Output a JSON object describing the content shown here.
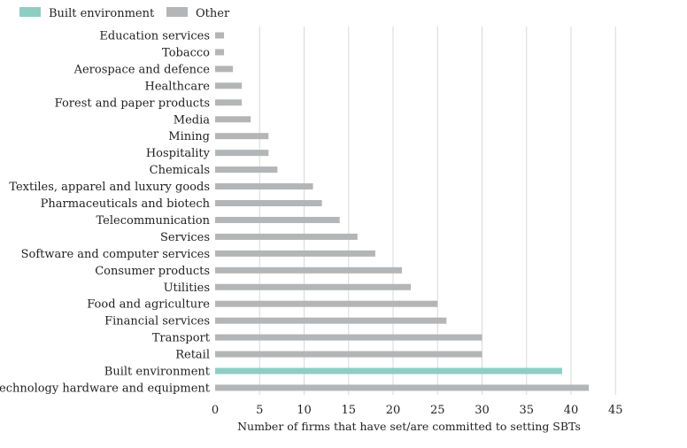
{
  "chart_data": {
    "type": "bar",
    "orientation": "horizontal",
    "categories": [
      "Education services",
      "Tobacco",
      "Aerospace and defence",
      "Healthcare",
      "Forest and paper products",
      "Media",
      "Mining",
      "Hospitality",
      "Chemicals",
      "Textiles, apparel and luxury goods",
      "Pharmaceuticals and biotech",
      "Telecommunication",
      "Services",
      "Software and computer services",
      "Consumer products",
      "Utilities",
      "Food and agriculture",
      "Financial services",
      "Transport",
      "Retail",
      "Built environment",
      "Technology hardware and equipment"
    ],
    "values": [
      1,
      1,
      2,
      3,
      3,
      4,
      6,
      6,
      7,
      11,
      12,
      14,
      16,
      18,
      21,
      22,
      25,
      26,
      30,
      30,
      39,
      42
    ],
    "groups": [
      "Other",
      "Other",
      "Other",
      "Other",
      "Other",
      "Other",
      "Other",
      "Other",
      "Other",
      "Other",
      "Other",
      "Other",
      "Other",
      "Other",
      "Other",
      "Other",
      "Other",
      "Other",
      "Other",
      "Other",
      "Built environment",
      "Other"
    ],
    "legend": [
      {
        "name": "Built environment",
        "color": "#8fcdc3"
      },
      {
        "name": "Other",
        "color": "#b3b5b7"
      }
    ],
    "legend_position": "top-left",
    "xlabel": "Number of firms that have set/are committed to setting SBTs",
    "xlim": [
      0,
      45
    ],
    "xticks": [
      0,
      5,
      10,
      15,
      20,
      25,
      30,
      35,
      40,
      45
    ],
    "grid": "vertical"
  }
}
